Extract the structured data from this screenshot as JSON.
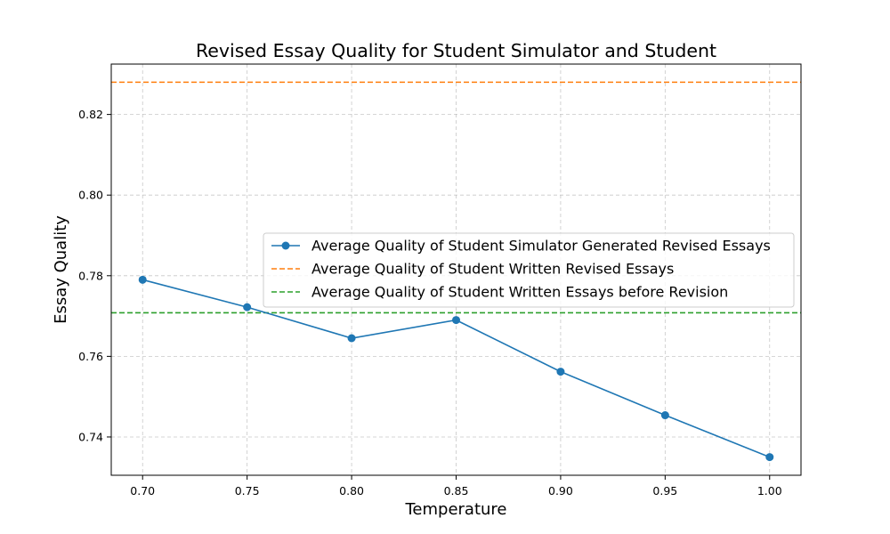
{
  "chart_data": {
    "type": "line",
    "title": "Revised Essay Quality for Student Simulator and Student",
    "xlabel": "Temperature",
    "ylabel": "Essay Quality",
    "xlim": [
      0.685,
      1.015
    ],
    "ylim": [
      0.7305,
      0.8325
    ],
    "xticks": [
      0.7,
      0.75,
      0.8,
      0.85,
      0.9,
      0.95,
      1.0
    ],
    "xtick_labels": [
      "0.70",
      "0.75",
      "0.80",
      "0.85",
      "0.90",
      "0.95",
      "1.00"
    ],
    "yticks": [
      0.74,
      0.76,
      0.78,
      0.8,
      0.82
    ],
    "ytick_labels": [
      "0.74",
      "0.76",
      "0.78",
      "0.80",
      "0.82"
    ],
    "grid": true,
    "legend_position": "center-right",
    "series": [
      {
        "name": "Average Quality of Student Simulator Generated Revised Essays",
        "style": "line-marker",
        "color": "#1f77b4",
        "x": [
          0.7,
          0.75,
          0.8,
          0.85,
          0.9,
          0.95,
          1.0
        ],
        "y": [
          0.779,
          0.7722,
          0.7645,
          0.769,
          0.7562,
          0.7454,
          0.735
        ]
      },
      {
        "name": "Average Quality of Student Written Revised Essays",
        "style": "hline-dashed",
        "color": "#ff7f0e",
        "y": 0.828
      },
      {
        "name": "Average Quality of Student Written Essays before Revision",
        "style": "hline-dashed",
        "color": "#2ca02c",
        "y": 0.7708
      }
    ]
  }
}
